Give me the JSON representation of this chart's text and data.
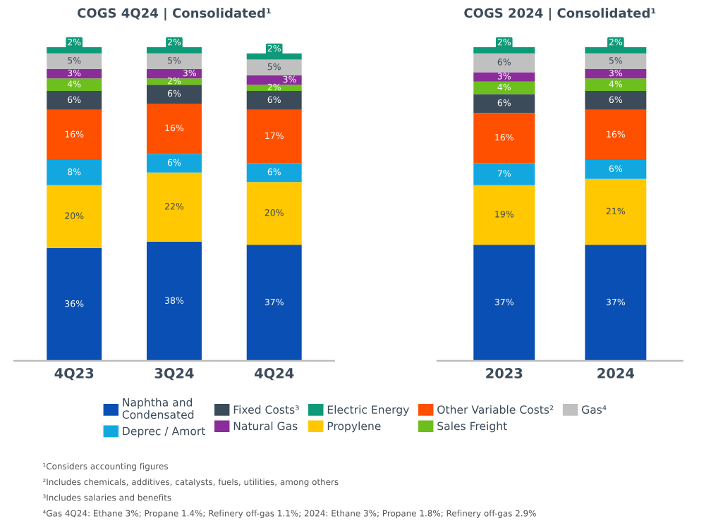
{
  "chart_data": [
    {
      "type": "bar",
      "stacked": true,
      "legend": "bottom",
      "title": "COGS 4Q24 | Consolidated¹",
      "categories": [
        "4Q23",
        "3Q24",
        "4Q24"
      ],
      "series": [
        {
          "name": "Naphtha and Condensated",
          "color": "#0a4fb3",
          "values": [
            36,
            38,
            37
          ],
          "value_labels": [
            "36%",
            "38%",
            "37%"
          ]
        },
        {
          "name": "Propylene",
          "color": "#ffc800",
          "values": [
            20,
            22,
            20
          ],
          "value_labels": [
            "20%",
            "22%",
            "20%"
          ]
        },
        {
          "name": "Deprec / Amort",
          "color": "#12a8df",
          "values": [
            8,
            6,
            6
          ],
          "value_labels": [
            "8%",
            "6%",
            "6%"
          ]
        },
        {
          "name": "Other Variable Costs²",
          "color": "#ff5000",
          "values": [
            16,
            16,
            17
          ],
          "value_labels": [
            "16%",
            "16%",
            "17%"
          ]
        },
        {
          "name": "Fixed Costs³",
          "color": "#3c4b5a",
          "values": [
            6,
            6,
            6
          ],
          "value_labels": [
            "6%",
            "6%",
            "6%"
          ]
        },
        {
          "name": "Sales Freight",
          "color": "#6cbf1c",
          "values": [
            4,
            2,
            2
          ],
          "value_labels": [
            "4%",
            "2%",
            "2%"
          ]
        },
        {
          "name": "Natural Gas",
          "color": "#8a2c9a",
          "values": [
            3,
            3,
            3
          ],
          "value_labels": [
            "3%",
            "3%",
            "3%"
          ]
        },
        {
          "name": "Gas⁴",
          "color": "#c0c0c0",
          "values": [
            5,
            5,
            5
          ],
          "value_labels": [
            "5%",
            "5%",
            "5%"
          ]
        },
        {
          "name": "Electric Energy",
          "color": "#0e9a78",
          "values": [
            2,
            2,
            2
          ],
          "value_labels": [
            "2%",
            "2%",
            "2%"
          ]
        }
      ],
      "annotations": [
        "¹Considers accounting figures",
        "²Includes chemicals, additives, catalysts, fuels, utilities, among others",
        "³Includes salaries and benefits",
        "⁴Gas 4Q24: Ethane 3%; Propane 1.4%; Refinery off-gas 1.1%; 2024: Ethane 3%; Propane 1.8%; Refinery off-gas 2.9%"
      ]
    },
    {
      "type": "bar",
      "stacked": true,
      "title": "COGS 2024 | Consolidated¹",
      "categories": [
        "2023",
        "2024"
      ],
      "series": [
        {
          "color": "#0a4fb3",
          "values": [
            37,
            37
          ],
          "value_labels": [
            "37%",
            "37%"
          ]
        },
        {
          "color": "#ffc800",
          "values": [
            19,
            21
          ],
          "value_labels": [
            "19%",
            "21%"
          ]
        },
        {
          "color": "#12a8df",
          "values": [
            7,
            6
          ],
          "value_labels": [
            "7%",
            "6%"
          ]
        },
        {
          "color": "#ff5000",
          "values": [
            16,
            16
          ],
          "value_labels": [
            "16%",
            "16%"
          ]
        },
        {
          "color": "#3c4b5a",
          "values": [
            6,
            6
          ],
          "value_labels": [
            "6%",
            "6%"
          ]
        },
        {
          "color": "#6cbf1c",
          "values": [
            4,
            4
          ],
          "value_labels": [
            "4%",
            "4%"
          ]
        },
        {
          "color": "#8a2c9a",
          "values": [
            3,
            3
          ],
          "value_labels": [
            "3%",
            "3%"
          ]
        },
        {
          "color": "#c0c0c0",
          "values": [
            6,
            5
          ],
          "value_labels": [
            "6%",
            "5%"
          ]
        },
        {
          "color": "#0e9a78",
          "values": [
            2,
            2
          ],
          "value_labels": [
            "2%",
            "2%"
          ]
        }
      ]
    }
  ]
}
